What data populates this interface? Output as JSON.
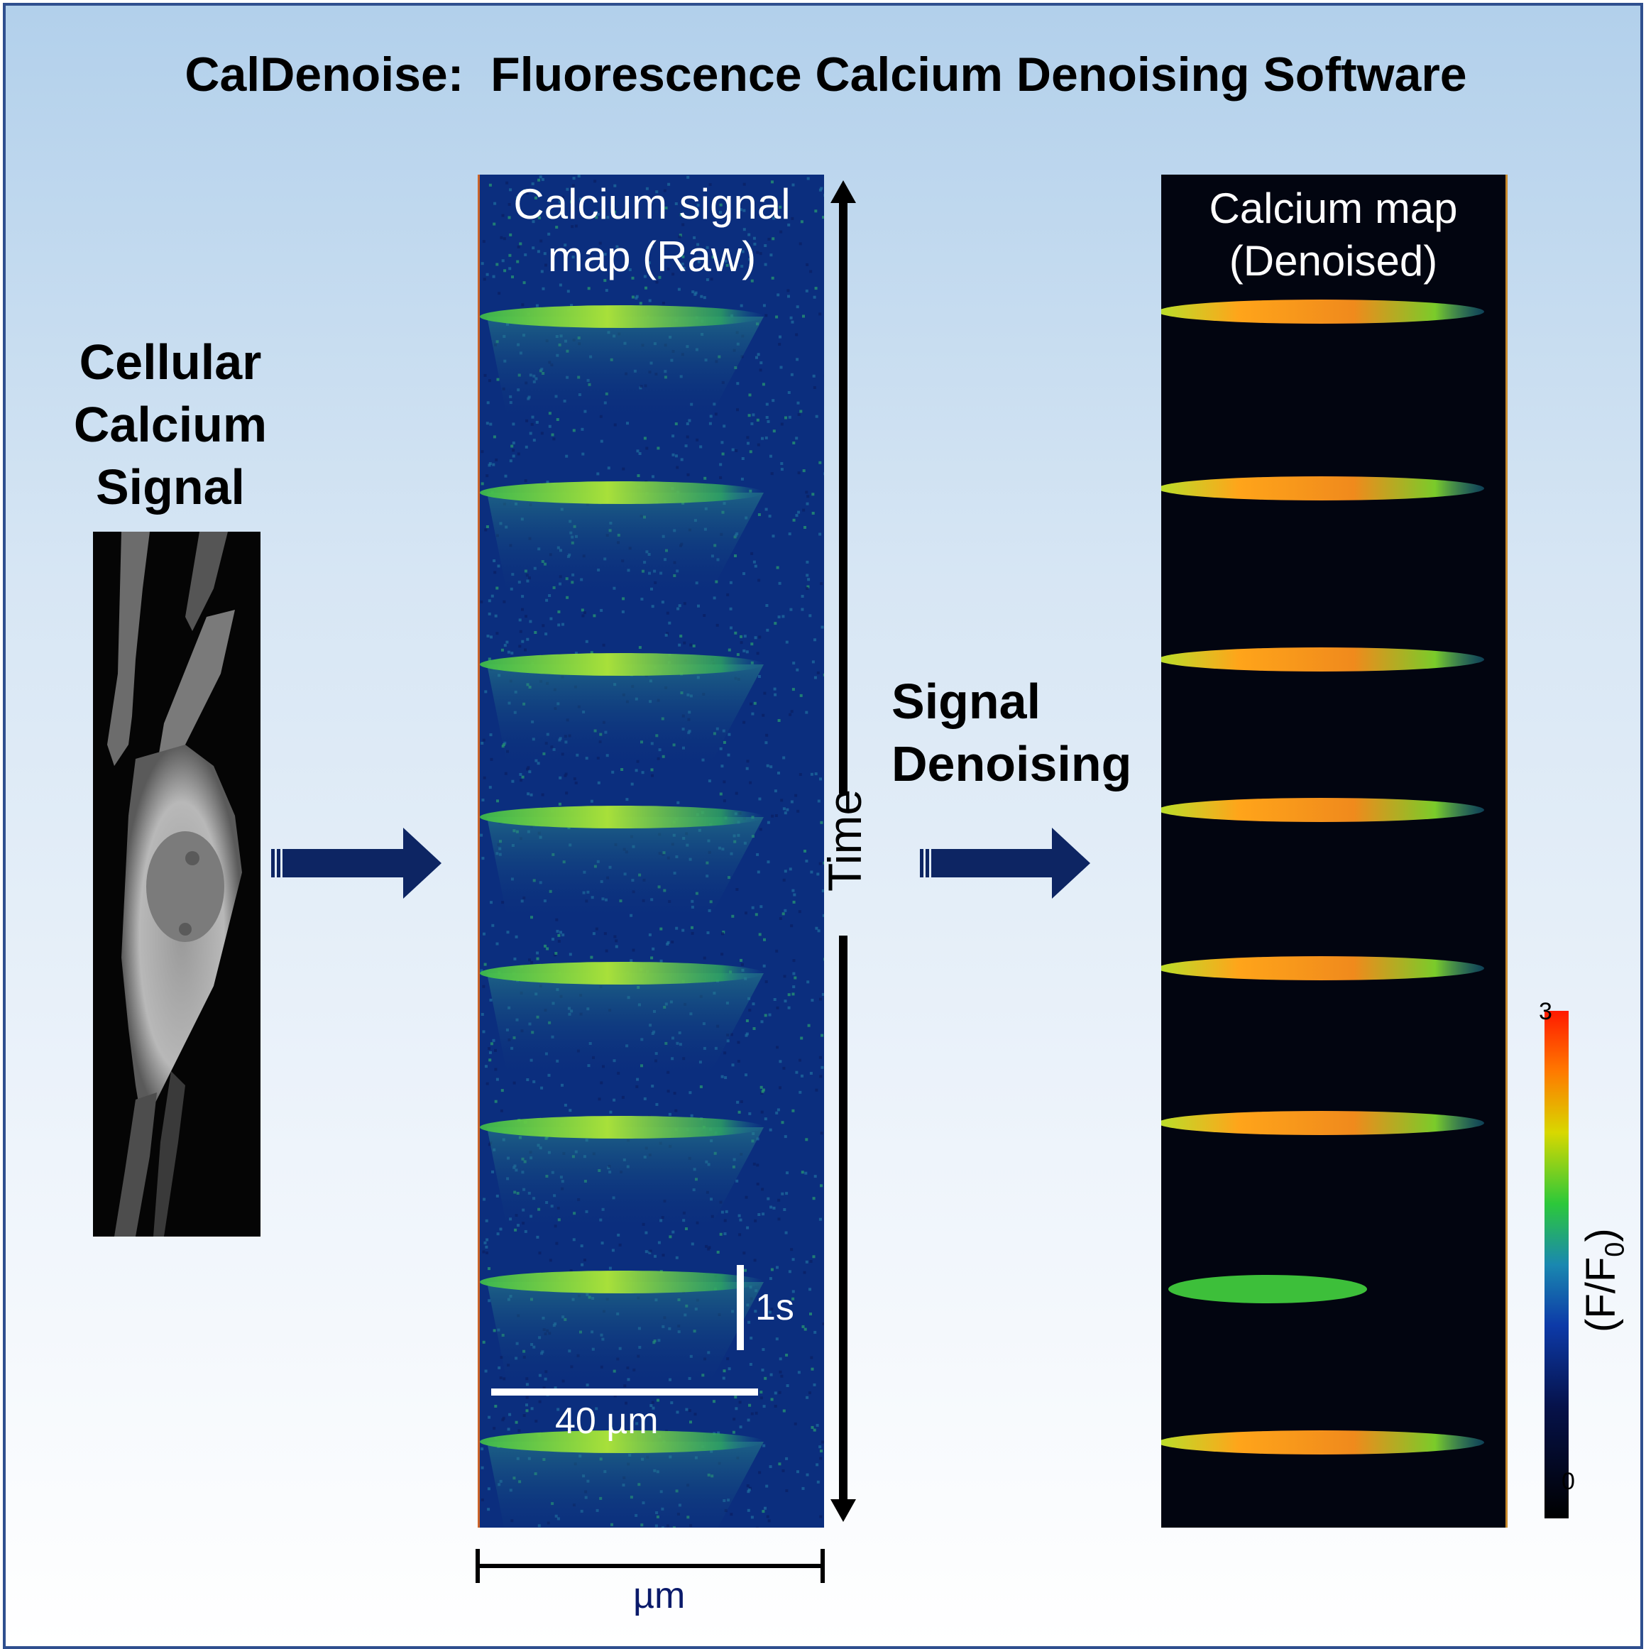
{
  "title": "CalDenoise:  Fluorescence Calcium Denoising Software",
  "left_label": [
    "Cellular",
    "Calcium",
    "Signal"
  ],
  "raw_map": {
    "title_line1": "Calcium signal",
    "title_line2": "map (Raw)"
  },
  "denoised_map": {
    "title_line1": "Calcium map",
    "title_line2": "(Denoised)"
  },
  "time_label": "Time",
  "process_label": [
    "Signal",
    "Denoising"
  ],
  "scale_bars": {
    "time": "1s",
    "space": "40 µm"
  },
  "axis_label": "µm",
  "colorbar": {
    "max": "3",
    "min": "0",
    "unit": "(F/F",
    "unit_sub": "0",
    "unit_close": ")"
  },
  "colors": {
    "arrow": "#0d2563",
    "frame": "#2f4f8f",
    "raw_background": "#0b2e7e",
    "denoised_background": "#020510"
  }
}
